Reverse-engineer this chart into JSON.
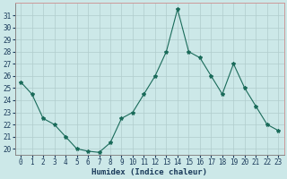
{
  "x": [
    0,
    1,
    2,
    3,
    4,
    5,
    6,
    7,
    8,
    9,
    10,
    11,
    12,
    13,
    14,
    15,
    16,
    17,
    18,
    19,
    20,
    21,
    22,
    23
  ],
  "y": [
    25.5,
    24.5,
    22.5,
    22.0,
    21.0,
    20.0,
    19.8,
    19.7,
    20.5,
    22.5,
    23.0,
    24.5,
    26.0,
    28.0,
    31.5,
    28.0,
    27.5,
    26.0,
    24.5,
    27.0,
    25.0,
    23.5,
    22.0,
    21.5
  ],
  "line_color": "#1a6b5a",
  "marker": "*",
  "marker_size": 3,
  "linewidth": 0.8,
  "background_color": "#cce8e8",
  "grid_color": "#b0cccc",
  "xlabel": "Humidex (Indice chaleur)",
  "xlabel_fontsize": 6.5,
  "tick_fontsize": 5.5,
  "ylim": [
    19.5,
    32.0
  ],
  "yticks": [
    20,
    21,
    22,
    23,
    24,
    25,
    26,
    27,
    28,
    29,
    30,
    31
  ],
  "xticks": [
    0,
    1,
    2,
    3,
    4,
    5,
    6,
    7,
    8,
    9,
    10,
    11,
    12,
    13,
    14,
    15,
    16,
    17,
    18,
    19,
    20,
    21,
    22,
    23
  ],
  "xlim": [
    -0.5,
    23.5
  ],
  "top_spine_color": "#cc9999",
  "right_spine_color": "#cc9999",
  "left_spine_color": "#888888",
  "bottom_spine_color": "#888888",
  "xlabel_color": "#1a3a5a",
  "tick_color": "#1a3a5a"
}
